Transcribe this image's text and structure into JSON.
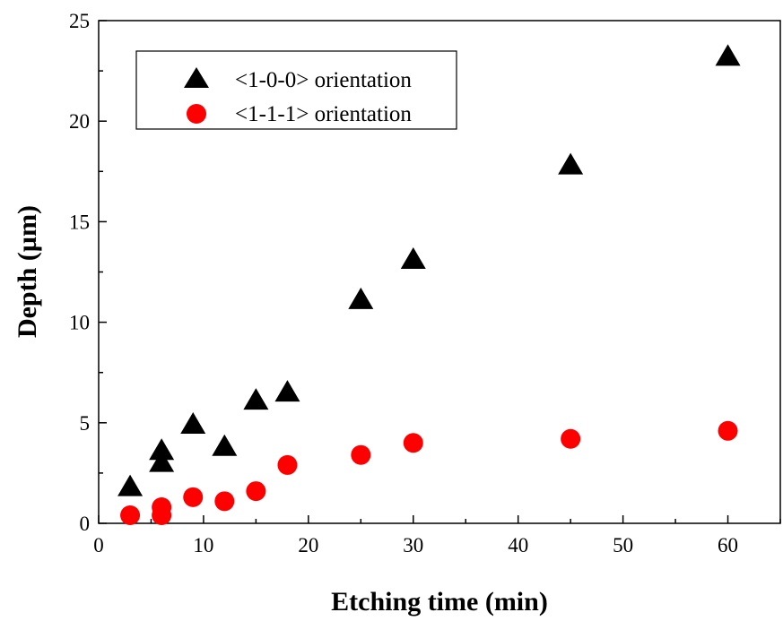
{
  "chart_data": {
    "type": "scatter",
    "title": "",
    "xlabel": "Etching time (min)",
    "ylabel": "Depth (µm)",
    "xlim": [
      0,
      65
    ],
    "ylim": [
      0,
      25
    ],
    "xticks": [
      "0",
      "10",
      "20",
      "30",
      "40",
      "50",
      "60"
    ],
    "yticks": [
      "0",
      "5",
      "10",
      "15",
      "20",
      "25"
    ],
    "grid": false,
    "legend_position": "top-left",
    "series": [
      {
        "name": "<1-0-0> orientation",
        "marker": "triangle",
        "color": "#000000",
        "x": [
          3,
          6,
          6,
          9,
          12,
          15,
          18,
          25,
          30,
          45,
          60
        ],
        "y": [
          1.8,
          3.6,
          3.0,
          4.9,
          3.8,
          6.1,
          6.5,
          11.1,
          13.1,
          17.8,
          23.2
        ]
      },
      {
        "name": "<1-1-1> orientation",
        "marker": "circle",
        "color": "#ff0000",
        "x": [
          3,
          6,
          6,
          9,
          12,
          15,
          18,
          25,
          30,
          45,
          60
        ],
        "y": [
          0.4,
          0.8,
          0.4,
          1.3,
          1.1,
          1.6,
          2.9,
          3.4,
          4.0,
          4.2,
          4.6
        ]
      }
    ]
  }
}
